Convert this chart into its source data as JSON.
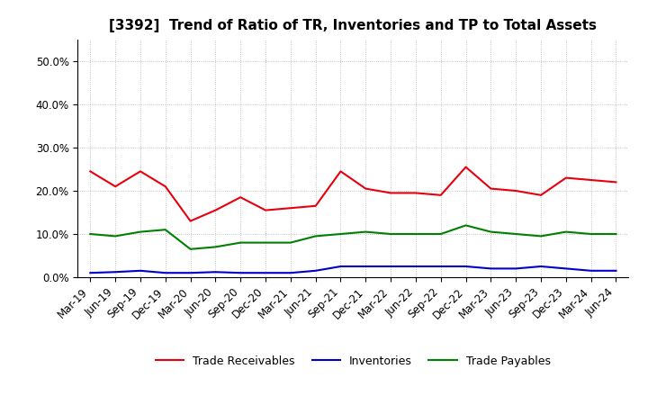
{
  "title": "[3392]  Trend of Ratio of TR, Inventories and TP to Total Assets",
  "labels": [
    "Mar-19",
    "Jun-19",
    "Sep-19",
    "Dec-19",
    "Mar-20",
    "Jun-20",
    "Sep-20",
    "Dec-20",
    "Mar-21",
    "Jun-21",
    "Sep-21",
    "Dec-21",
    "Mar-22",
    "Jun-22",
    "Sep-22",
    "Dec-22",
    "Mar-23",
    "Jun-23",
    "Sep-23",
    "Dec-23",
    "Mar-24",
    "Jun-24"
  ],
  "trade_receivables": [
    24.5,
    21.0,
    24.5,
    21.0,
    13.0,
    15.5,
    18.5,
    15.5,
    16.0,
    16.5,
    24.5,
    20.5,
    19.5,
    19.5,
    19.0,
    25.5,
    20.5,
    20.0,
    19.0,
    23.0,
    22.5,
    22.0
  ],
  "inventories": [
    1.0,
    1.2,
    1.5,
    1.0,
    1.0,
    1.2,
    1.0,
    1.0,
    1.0,
    1.5,
    2.5,
    2.5,
    2.5,
    2.5,
    2.5,
    2.5,
    2.0,
    2.0,
    2.5,
    2.0,
    1.5,
    1.5
  ],
  "trade_payables": [
    10.0,
    9.5,
    10.5,
    11.0,
    6.5,
    7.0,
    8.0,
    8.0,
    8.0,
    9.5,
    10.0,
    10.5,
    10.0,
    10.0,
    10.0,
    12.0,
    10.5,
    10.0,
    9.5,
    10.5,
    10.0,
    10.0
  ],
  "ylim": [
    0,
    55
  ],
  "yticks": [
    0,
    10,
    20,
    30,
    40,
    50
  ],
  "ytick_labels": [
    "0.0%",
    "10.0%",
    "20.0%",
    "30.0%",
    "40.0%",
    "50.0%"
  ],
  "tr_color": "#e8000d",
  "inv_color": "#0000cd",
  "tp_color": "#008000",
  "legend_labels": [
    "Trade Receivables",
    "Inventories",
    "Trade Payables"
  ],
  "background_color": "#ffffff",
  "grid_color": "#aaaaaa",
  "title_fontsize": 11,
  "tick_fontsize": 8.5,
  "legend_fontsize": 9
}
